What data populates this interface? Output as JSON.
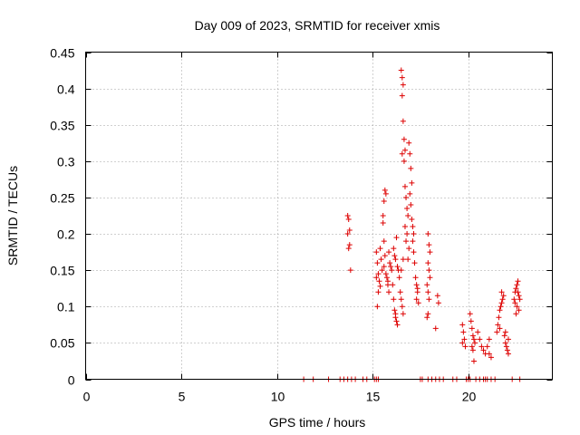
{
  "chart_data": {
    "type": "scatter",
    "title": "Day 009 of 2023, SRMTID for receiver xmis",
    "xlabel": "GPS time / hours",
    "ylabel": "SRMTID / TECUs",
    "xlim": [
      0,
      24.4
    ],
    "ylim": [
      0,
      0.45
    ],
    "xticks": [
      0,
      5,
      10,
      15,
      20
    ],
    "xtick_labels": [
      "0",
      "5",
      "10",
      "15",
      "20"
    ],
    "yticks": [
      0,
      0.05,
      0.1,
      0.15,
      0.2,
      0.25,
      0.3,
      0.35,
      0.4,
      0.45
    ],
    "ytick_labels": [
      "0",
      "0.05",
      "0.1",
      "0.15",
      "0.2",
      "0.25",
      "0.3",
      "0.35",
      "0.4",
      "0.45"
    ],
    "grid": true,
    "marker": "+",
    "color": "#dd0000",
    "series": [
      {
        "name": "SRMTID",
        "points": [
          [
            11.4,
            0
          ],
          [
            11.9,
            0
          ],
          [
            12.7,
            0
          ],
          [
            13.3,
            0
          ],
          [
            13.5,
            0
          ],
          [
            13.7,
            0
          ],
          [
            13.9,
            0
          ],
          [
            14.1,
            0
          ],
          [
            14.5,
            0
          ],
          [
            14.7,
            0
          ],
          [
            15.1,
            0
          ],
          [
            15.2,
            0
          ],
          [
            15.3,
            0
          ],
          [
            17.5,
            0
          ],
          [
            17.6,
            0
          ],
          [
            17.9,
            0
          ],
          [
            18.1,
            0
          ],
          [
            18.3,
            0
          ],
          [
            18.5,
            0
          ],
          [
            18.7,
            0
          ],
          [
            19.2,
            0
          ],
          [
            19.4,
            0
          ],
          [
            19.9,
            0
          ],
          [
            20.0,
            0
          ],
          [
            20.1,
            0
          ],
          [
            20.4,
            0
          ],
          [
            20.6,
            0
          ],
          [
            20.8,
            0
          ],
          [
            20.9,
            0
          ],
          [
            21.0,
            0
          ],
          [
            21.2,
            0
          ],
          [
            21.4,
            0
          ],
          [
            22.3,
            0
          ],
          [
            22.7,
            0
          ],
          [
            13.7,
            0.225
          ],
          [
            13.75,
            0.22
          ],
          [
            13.8,
            0.205
          ],
          [
            13.7,
            0.2
          ],
          [
            13.8,
            0.185
          ],
          [
            13.75,
            0.18
          ],
          [
            13.85,
            0.15
          ],
          [
            15.2,
            0.175
          ],
          [
            15.25,
            0.16
          ],
          [
            15.3,
            0.145
          ],
          [
            15.2,
            0.14
          ],
          [
            15.3,
            0.12
          ],
          [
            15.25,
            0.1
          ],
          [
            15.4,
            0.18
          ],
          [
            15.45,
            0.165
          ],
          [
            15.5,
            0.15
          ],
          [
            15.35,
            0.135
          ],
          [
            15.4,
            0.128
          ],
          [
            15.55,
            0.215
          ],
          [
            15.6,
            0.19
          ],
          [
            15.65,
            0.17
          ],
          [
            15.6,
            0.155
          ],
          [
            15.7,
            0.145
          ],
          [
            15.55,
            0.225
          ],
          [
            15.6,
            0.245
          ],
          [
            15.65,
            0.26
          ],
          [
            15.7,
            0.255
          ],
          [
            15.75,
            0.14
          ],
          [
            15.8,
            0.13
          ],
          [
            15.85,
            0.12
          ],
          [
            15.8,
            0.135
          ],
          [
            15.9,
            0.16
          ],
          [
            15.85,
            0.175
          ],
          [
            15.95,
            0.155
          ],
          [
            16.0,
            0.15
          ],
          [
            16.05,
            0.13
          ],
          [
            16.1,
            0.11
          ],
          [
            16.15,
            0.095
          ],
          [
            16.2,
            0.085
          ],
          [
            16.25,
            0.08
          ],
          [
            16.3,
            0.075
          ],
          [
            16.2,
            0.09
          ],
          [
            16.1,
            0.18
          ],
          [
            16.15,
            0.17
          ],
          [
            16.2,
            0.165
          ],
          [
            16.25,
            0.195
          ],
          [
            16.3,
            0.155
          ],
          [
            16.35,
            0.15
          ],
          [
            16.4,
            0.14
          ],
          [
            16.45,
            0.12
          ],
          [
            16.5,
            0.11
          ],
          [
            16.55,
            0.1
          ],
          [
            16.6,
            0.09
          ],
          [
            16.5,
            0.15
          ],
          [
            16.6,
            0.165
          ],
          [
            16.5,
            0.425
          ],
          [
            16.55,
            0.415
          ],
          [
            16.6,
            0.405
          ],
          [
            16.55,
            0.39
          ],
          [
            16.6,
            0.355
          ],
          [
            16.65,
            0.33
          ],
          [
            16.7,
            0.315
          ],
          [
            16.55,
            0.31
          ],
          [
            16.65,
            0.3
          ],
          [
            16.7,
            0.265
          ],
          [
            16.75,
            0.25
          ],
          [
            16.8,
            0.235
          ],
          [
            16.85,
            0.225
          ],
          [
            16.7,
            0.21
          ],
          [
            16.8,
            0.2
          ],
          [
            16.75,
            0.19
          ],
          [
            16.9,
            0.18
          ],
          [
            16.85,
            0.165
          ],
          [
            16.9,
            0.325
          ],
          [
            16.95,
            0.31
          ],
          [
            17.0,
            0.29
          ],
          [
            17.05,
            0.27
          ],
          [
            16.95,
            0.255
          ],
          [
            17.0,
            0.24
          ],
          [
            17.05,
            0.22
          ],
          [
            17.1,
            0.21
          ],
          [
            17.15,
            0.2
          ],
          [
            17.1,
            0.19
          ],
          [
            17.15,
            0.175
          ],
          [
            17.2,
            0.16
          ],
          [
            17.25,
            0.14
          ],
          [
            17.3,
            0.13
          ],
          [
            17.35,
            0.12
          ],
          [
            17.3,
            0.11
          ],
          [
            17.4,
            0.105
          ],
          [
            17.35,
            0.125
          ],
          [
            17.9,
            0.2
          ],
          [
            17.95,
            0.185
          ],
          [
            18.0,
            0.175
          ],
          [
            17.9,
            0.16
          ],
          [
            17.95,
            0.15
          ],
          [
            18.0,
            0.14
          ],
          [
            17.85,
            0.13
          ],
          [
            17.9,
            0.12
          ],
          [
            17.95,
            0.11
          ],
          [
            17.9,
            0.09
          ],
          [
            17.85,
            0.085
          ],
          [
            18.4,
            0.115
          ],
          [
            18.45,
            0.105
          ],
          [
            18.3,
            0.07
          ],
          [
            19.7,
            0.075
          ],
          [
            19.75,
            0.065
          ],
          [
            19.8,
            0.055
          ],
          [
            19.85,
            0.045
          ],
          [
            19.7,
            0.05
          ],
          [
            20.1,
            0.09
          ],
          [
            20.15,
            0.08
          ],
          [
            20.2,
            0.07
          ],
          [
            20.25,
            0.06
          ],
          [
            20.3,
            0.055
          ],
          [
            20.2,
            0.045
          ],
          [
            20.25,
            0.04
          ],
          [
            20.3,
            0.025
          ],
          [
            20.35,
            0.05
          ],
          [
            20.5,
            0.065
          ],
          [
            20.6,
            0.055
          ],
          [
            20.7,
            0.045
          ],
          [
            20.8,
            0.04
          ],
          [
            20.9,
            0.035
          ],
          [
            21.0,
            0.045
          ],
          [
            21.1,
            0.035
          ],
          [
            21.2,
            0.03
          ],
          [
            21.1,
            0.055
          ],
          [
            21.5,
            0.065
          ],
          [
            21.55,
            0.075
          ],
          [
            21.6,
            0.085
          ],
          [
            21.65,
            0.095
          ],
          [
            21.7,
            0.1
          ],
          [
            21.75,
            0.105
          ],
          [
            21.8,
            0.11
          ],
          [
            21.85,
            0.115
          ],
          [
            21.75,
            0.12
          ],
          [
            21.65,
            0.07
          ],
          [
            21.9,
            0.06
          ],
          [
            21.95,
            0.05
          ],
          [
            22.0,
            0.045
          ],
          [
            22.05,
            0.04
          ],
          [
            22.1,
            0.035
          ],
          [
            21.95,
            0.065
          ],
          [
            22.1,
            0.055
          ],
          [
            22.4,
            0.11
          ],
          [
            22.45,
            0.12
          ],
          [
            22.5,
            0.125
          ],
          [
            22.55,
            0.13
          ],
          [
            22.6,
            0.12
          ],
          [
            22.65,
            0.115
          ],
          [
            22.7,
            0.11
          ],
          [
            22.45,
            0.105
          ],
          [
            22.55,
            0.1
          ],
          [
            22.65,
            0.095
          ],
          [
            22.5,
            0.09
          ],
          [
            22.6,
            0.135
          ]
        ]
      }
    ]
  }
}
